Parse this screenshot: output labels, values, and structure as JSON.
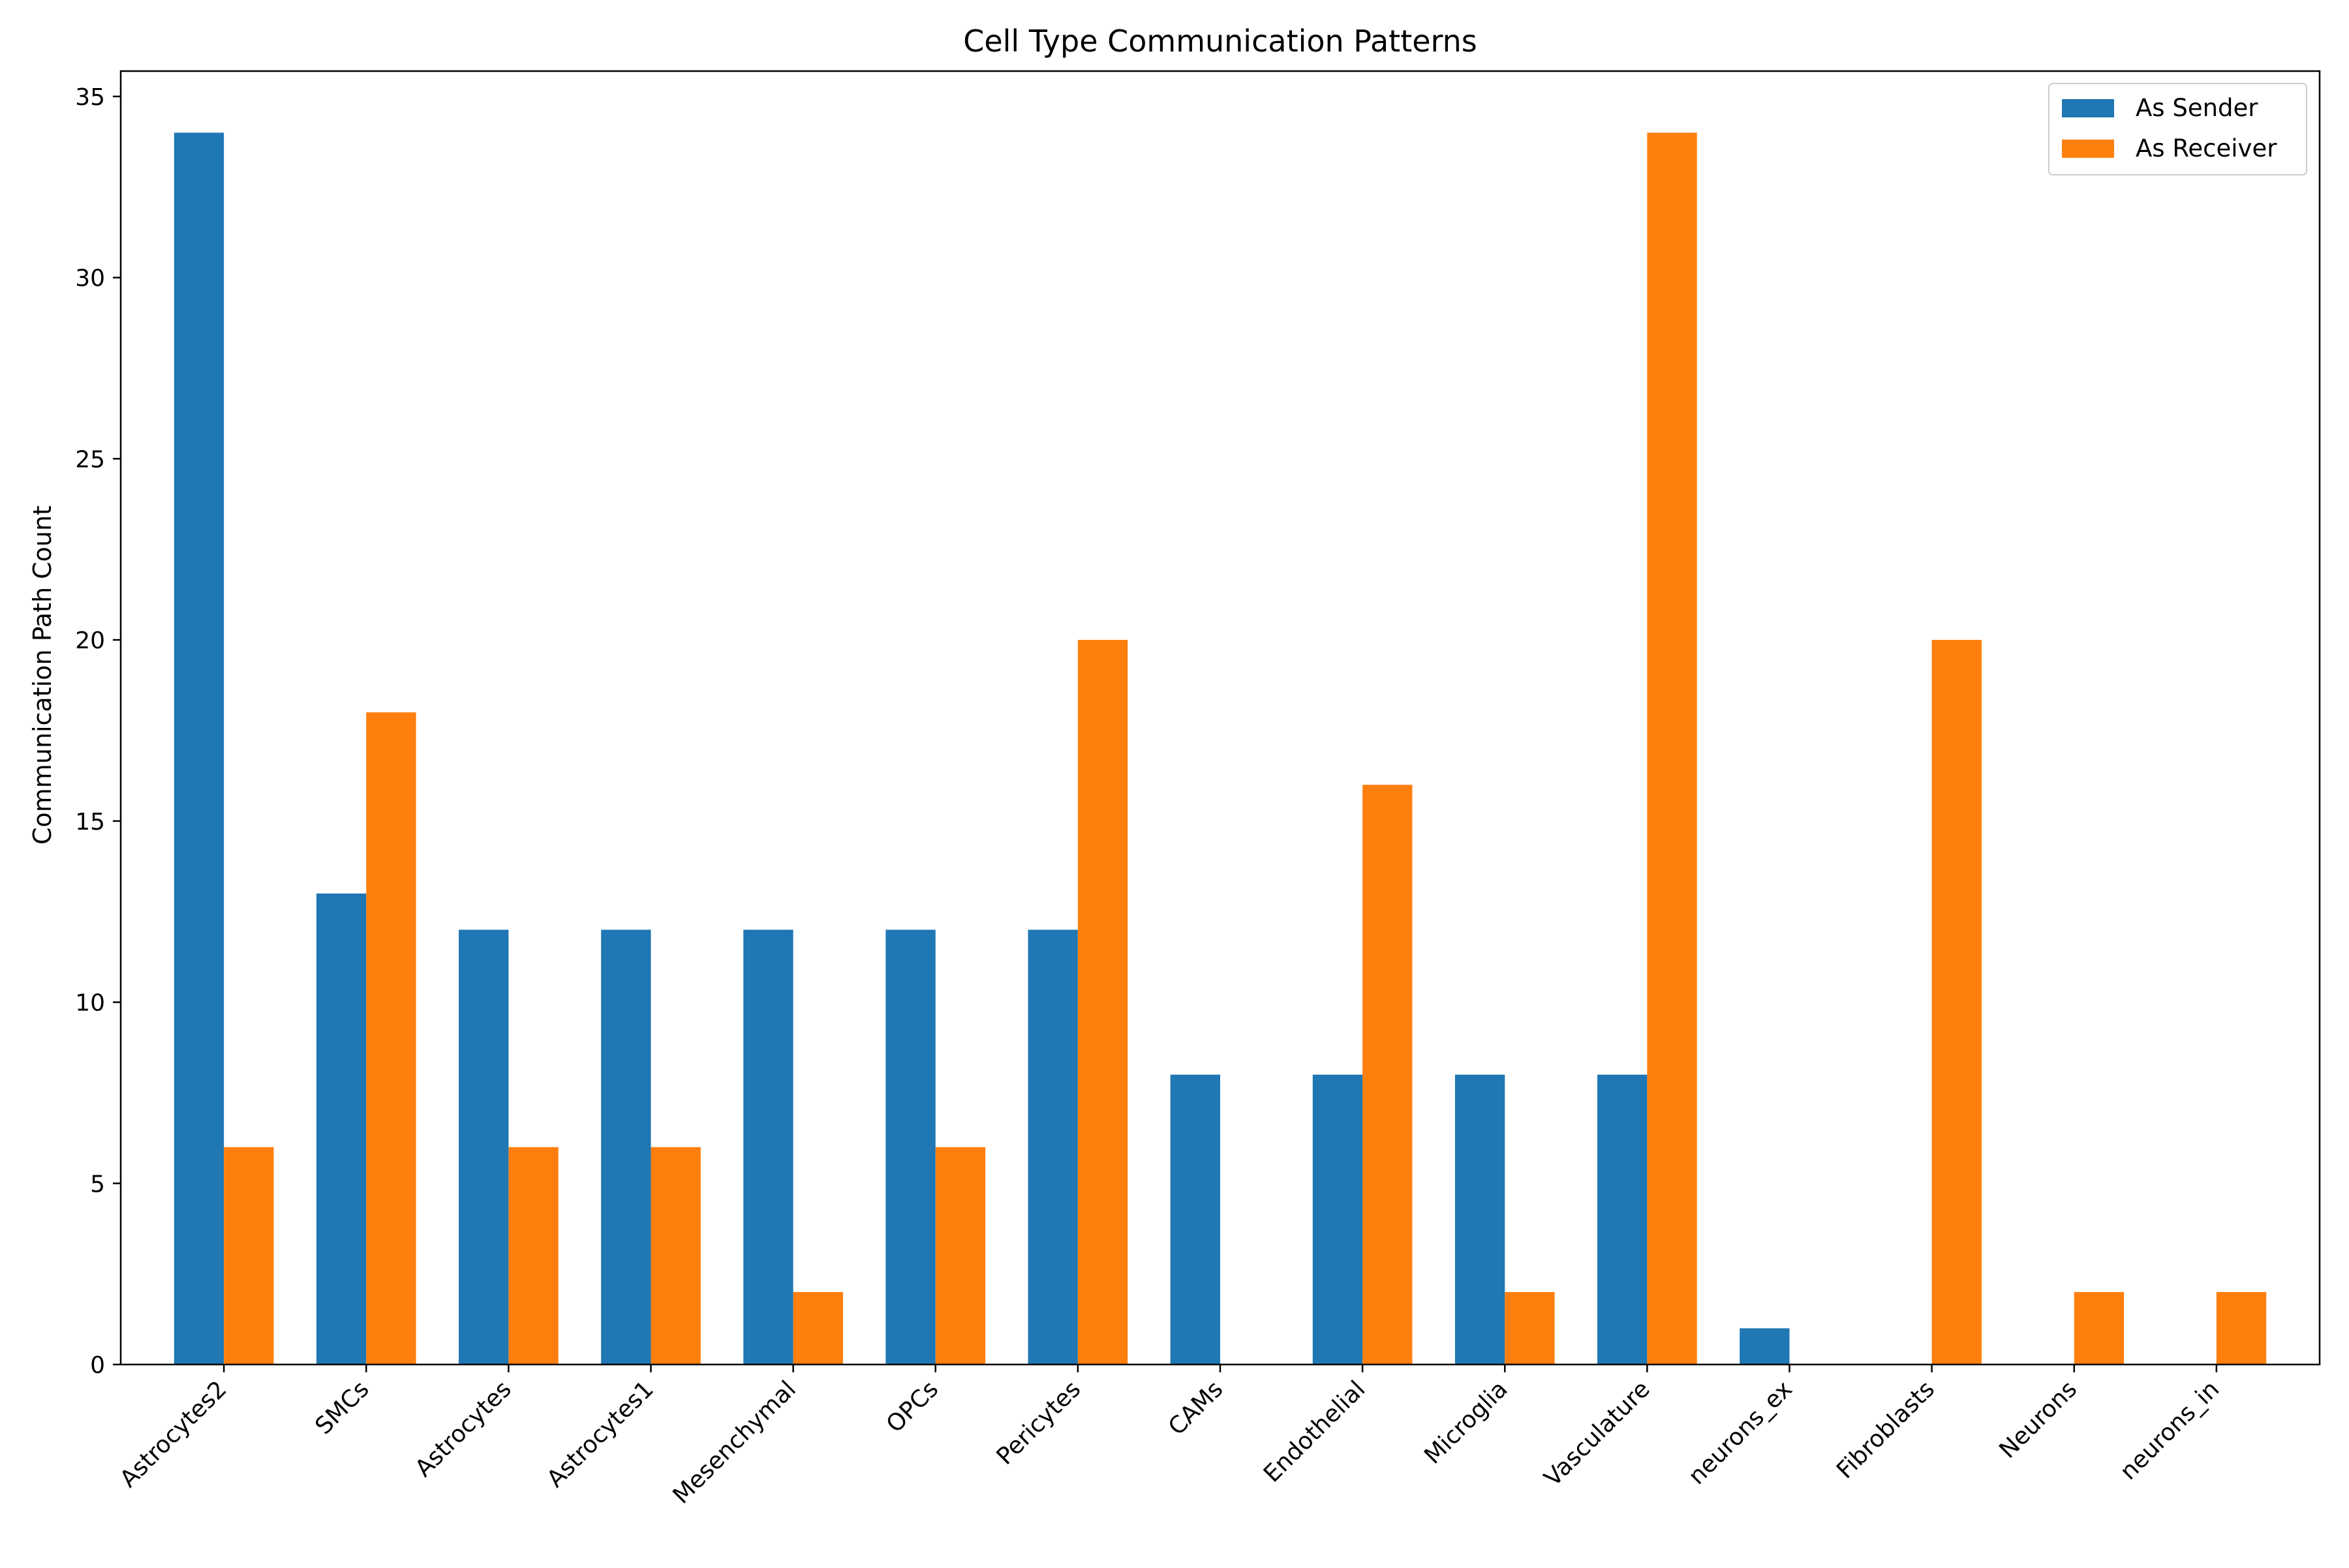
{
  "chart_data": {
    "type": "bar",
    "title": "Cell Type Communication Patterns",
    "xlabel": "",
    "ylabel": "Communication Path Count",
    "ylim": [
      0,
      35.7
    ],
    "yticks": [
      0,
      5,
      10,
      15,
      20,
      25,
      30,
      35
    ],
    "grid": false,
    "legend_position": "top-right",
    "categories": [
      "Astrocytes2",
      "SMCs",
      "Astrocytes",
      "Astrocytes1",
      "Mesenchymal",
      "OPCs",
      "Pericytes",
      "CAMs",
      "Endothelial",
      "Microglia",
      "Vasculature",
      "neurons_ex",
      "Fibroblasts",
      "Neurons",
      "neurons_in"
    ],
    "series": [
      {
        "name": "As Sender",
        "color": "#1f77b4",
        "values": [
          34,
          13,
          12,
          12,
          12,
          12,
          12,
          8,
          8,
          8,
          8,
          1,
          0,
          0,
          0
        ]
      },
      {
        "name": "As Receiver",
        "color": "#ff7f0e",
        "values": [
          6,
          18,
          6,
          6,
          2,
          6,
          20,
          0,
          16,
          2,
          34,
          0,
          20,
          2,
          2
        ]
      }
    ]
  }
}
